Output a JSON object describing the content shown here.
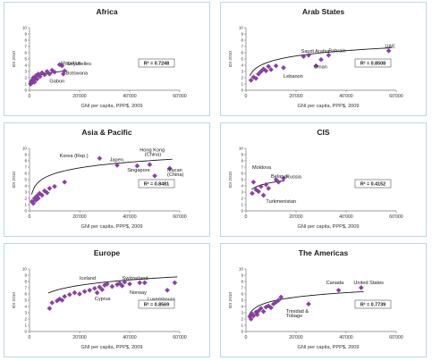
{
  "colors": {
    "marker": "#8e3fa8",
    "trend": "#1a1a1a",
    "frame": "#b9d7e6",
    "axis": "#7a7a7a"
  },
  "chart_data": [
    {
      "type": "scatter",
      "title": "Africa",
      "xlabel": "GNI per capita, PPP$, 2009",
      "ylabel": "IDI 2010",
      "xlim": [
        0,
        60000
      ],
      "ylim": [
        0,
        10
      ],
      "x_ticks": [
        "0",
        "20'000",
        "40'000",
        "60'000"
      ],
      "y_ticks": [
        "0",
        "1",
        "2",
        "3",
        "4",
        "5",
        "6",
        "7",
        "8",
        "9",
        "10"
      ],
      "r2_label": "R² = 0.7248",
      "points": [
        [
          400,
          1.0
        ],
        [
          600,
          1.3
        ],
        [
          800,
          1.1
        ],
        [
          1000,
          1.6
        ],
        [
          1200,
          1.4
        ],
        [
          1500,
          2.0
        ],
        [
          1800,
          1.7
        ],
        [
          2000,
          1.3
        ],
        [
          2500,
          2.3
        ],
        [
          3000,
          1.8
        ],
        [
          3500,
          2.6
        ],
        [
          4200,
          2.2
        ],
        [
          5000,
          2.8
        ],
        [
          6000,
          2.5
        ],
        [
          7000,
          3.0
        ],
        [
          8000,
          2.6
        ],
        [
          9000,
          3.2
        ],
        [
          10000,
          2.9
        ],
        [
          12000,
          4.1
        ],
        [
          13000,
          3.9
        ],
        [
          13500,
          2.6
        ],
        [
          14000,
          3.1
        ]
      ],
      "trend": {
        "a": -2.0,
        "b": 0.53,
        "x0": 300,
        "x1": 14500
      },
      "annotations": [
        {
          "text": "Mauritius",
          "x": 12500,
          "y": 4.1
        },
        {
          "text": "Seychelles",
          "x": 15000,
          "y": 4.0
        },
        {
          "text": "Botswana",
          "x": 14500,
          "y": 2.5
        },
        {
          "text": "Gabon",
          "x": 8000,
          "y": 1.2
        }
      ]
    },
    {
      "type": "scatter",
      "title": "Arab States",
      "xlabel": "GNI per capita, PPP$, 2009",
      "ylabel": "IDI 2010",
      "xlim": [
        0,
        60000
      ],
      "ylim": [
        0,
        10
      ],
      "x_ticks": [
        "0",
        "20'000",
        "40'000",
        "60'000"
      ],
      "y_ticks": [
        "0",
        "1",
        "2",
        "3",
        "4",
        "5",
        "6",
        "7",
        "8",
        "9",
        "10"
      ],
      "r2_label": "R² = 0.8508",
      "points": [
        [
          2000,
          1.6
        ],
        [
          3000,
          2.1
        ],
        [
          4000,
          1.9
        ],
        [
          5000,
          2.6
        ],
        [
          6000,
          3.0
        ],
        [
          7000,
          3.4
        ],
        [
          8000,
          3.1
        ],
        [
          9000,
          3.8
        ],
        [
          10000,
          3.3
        ],
        [
          12000,
          3.9
        ],
        [
          15000,
          3.6
        ],
        [
          23000,
          5.4
        ],
        [
          25000,
          5.6
        ],
        [
          28000,
          3.9
        ],
        [
          30000,
          4.9
        ],
        [
          33000,
          5.6
        ],
        [
          57000,
          6.3
        ]
      ],
      "trend": {
        "a": -6.6,
        "b": 1.22,
        "x0": 1500,
        "x1": 58000
      },
      "annotations": [
        {
          "text": "Saudi Arabia",
          "x": 22000,
          "y": 6.0
        },
        {
          "text": "Bahrain",
          "x": 33000,
          "y": 6.1
        },
        {
          "text": "UAE",
          "x": 55500,
          "y": 6.8
        },
        {
          "text": "Oman",
          "x": 27000,
          "y": 3.5
        },
        {
          "text": "Lebanon",
          "x": 15000,
          "y": 2.0
        }
      ]
    },
    {
      "type": "scatter",
      "title": "Asia & Pacific",
      "xlabel": "GNI per capita, PPP$, 2009",
      "ylabel": "IDI 2010",
      "xlim": [
        0,
        60000
      ],
      "ylim": [
        0,
        10
      ],
      "x_ticks": [
        "0",
        "20'000",
        "40'000",
        "60'000"
      ],
      "y_ticks": [
        "0",
        "1",
        "2",
        "3",
        "4",
        "5",
        "6",
        "7",
        "8",
        "9",
        "10"
      ],
      "r2_label": "R² = 0.8481",
      "points": [
        [
          1000,
          1.5
        ],
        [
          1500,
          1.2
        ],
        [
          2000,
          2.0
        ],
        [
          2500,
          1.7
        ],
        [
          3000,
          2.4
        ],
        [
          3500,
          2.0
        ],
        [
          4000,
          2.8
        ],
        [
          5000,
          2.5
        ],
        [
          6000,
          3.2
        ],
        [
          7000,
          2.9
        ],
        [
          8000,
          3.6
        ],
        [
          10000,
          3.9
        ],
        [
          14000,
          4.6
        ],
        [
          28000,
          8.4
        ],
        [
          35000,
          7.3
        ],
        [
          43000,
          7.2
        ],
        [
          48000,
          7.4
        ],
        [
          50000,
          5.6
        ],
        [
          56000,
          6.8
        ]
      ],
      "trend": {
        "a": -6.2,
        "b": 1.32,
        "x0": 800,
        "x1": 57000
      },
      "annotations": [
        {
          "text": "Korea (Rep.)",
          "x": 12000,
          "y": 8.6
        },
        {
          "text": "Japen",
          "x": 32000,
          "y": 7.9
        },
        {
          "text": "Hong Kong",
          "x": 44000,
          "y": 9.5
        },
        {
          "text": "(China)",
          "x": 46000,
          "y": 8.8
        },
        {
          "text": "Singapore",
          "x": 39000,
          "y": 6.3
        },
        {
          "text": "Macan",
          "x": 55000,
          "y": 6.3
        },
        {
          "text": "(China)",
          "x": 55000,
          "y": 5.6
        },
        {
          "text": "Brunei",
          "x": 47000,
          "y": 4.4
        },
        {
          "text": "Darussalam",
          "x": 45000,
          "y": 3.7
        }
      ]
    },
    {
      "type": "scatter",
      "title": "CIS",
      "xlabel": "GNI per capita, PPP$, 2009",
      "ylabel": "IDI 2010",
      "xlim": [
        0,
        60000
      ],
      "ylim": [
        0,
        10
      ],
      "x_ticks": [
        "0",
        "20'000",
        "40'000",
        "60'000"
      ],
      "y_ticks": [
        "0",
        "1",
        "2",
        "3",
        "4",
        "5",
        "6",
        "7",
        "8",
        "9",
        "10"
      ],
      "r2_label": "R² = 0.4152",
      "points": [
        [
          2500,
          2.8
        ],
        [
          3000,
          4.6
        ],
        [
          4000,
          3.4
        ],
        [
          5000,
          3.1
        ],
        [
          6000,
          3.9
        ],
        [
          7000,
          2.5
        ],
        [
          8000,
          4.2
        ],
        [
          9000,
          3.6
        ],
        [
          12000,
          5.0
        ],
        [
          13000,
          4.6
        ],
        [
          15000,
          5.2
        ]
      ],
      "trend": {
        "a": -2.3,
        "b": 0.74,
        "x0": 2300,
        "x1": 15500
      },
      "annotations": [
        {
          "text": "Moldova",
          "x": 2500,
          "y": 6.7
        },
        {
          "text": "Belarus",
          "x": 10000,
          "y": 5.3
        },
        {
          "text": "Russia",
          "x": 16000,
          "y": 5.2
        },
        {
          "text": "Turkmenistan",
          "x": 8000,
          "y": 1.3
        }
      ]
    },
    {
      "type": "scatter",
      "title": "Europe",
      "xlabel": "GNI per capita, PPP$, 2009",
      "ylabel": "IDI 2010",
      "xlim": [
        0,
        60000
      ],
      "ylim": [
        0,
        10
      ],
      "x_ticks": [
        "0",
        "20'000",
        "40'000",
        "60'000"
      ],
      "y_ticks": [
        "0",
        "1",
        "2",
        "3",
        "4",
        "5",
        "6",
        "7",
        "8",
        "9",
        "10"
      ],
      "r2_label": "R² = 0.8569",
      "points": [
        [
          8000,
          3.7
        ],
        [
          9000,
          4.6
        ],
        [
          11000,
          4.9
        ],
        [
          12000,
          5.2
        ],
        [
          13000,
          5.0
        ],
        [
          14000,
          5.6
        ],
        [
          16000,
          5.9
        ],
        [
          18000,
          6.2
        ],
        [
          20000,
          6.0
        ],
        [
          22000,
          6.4
        ],
        [
          24000,
          6.6
        ],
        [
          26000,
          6.9
        ],
        [
          27000,
          6.2
        ],
        [
          28000,
          7.1
        ],
        [
          29000,
          6.7
        ],
        [
          30000,
          7.4
        ],
        [
          31000,
          7.6
        ],
        [
          33000,
          7.2
        ],
        [
          35000,
          7.5
        ],
        [
          36000,
          7.7
        ],
        [
          37000,
          7.3
        ],
        [
          38000,
          7.9
        ],
        [
          40000,
          7.6
        ],
        [
          44000,
          7.8
        ],
        [
          46000,
          7.8
        ],
        [
          55000,
          6.6
        ],
        [
          58000,
          7.8
        ]
      ],
      "trend": {
        "a": -5.0,
        "b": 1.25,
        "x0": 7500,
        "x1": 59000
      },
      "annotations": [
        {
          "text": "Iceland",
          "x": 20000,
          "y": 8.3
        },
        {
          "text": "Switzerland",
          "x": 37000,
          "y": 8.3
        },
        {
          "text": "Cyprus",
          "x": 26000,
          "y": 5.0
        },
        {
          "text": "Norway",
          "x": 40000,
          "y": 6.0
        },
        {
          "text": "Luxembourg",
          "x": 47000,
          "y": 4.9
        }
      ]
    },
    {
      "type": "scatter",
      "title": "The Americas",
      "xlabel": "GNI per capita, PPP$, 2009",
      "ylabel": "IDI 2010",
      "xlim": [
        0,
        60000
      ],
      "ylim": [
        0,
        10
      ],
      "x_ticks": [
        "0",
        "20'000",
        "40'000",
        "60'000"
      ],
      "y_ticks": [
        "0",
        "1",
        "2",
        "3",
        "4",
        "5",
        "6",
        "7",
        "8",
        "9",
        "10"
      ],
      "r2_label": "R² = 0.7739",
      "points": [
        [
          1500,
          2.4
        ],
        [
          2000,
          2.0
        ],
        [
          2500,
          2.8
        ],
        [
          3000,
          2.5
        ],
        [
          4000,
          3.1
        ],
        [
          4500,
          2.7
        ],
        [
          5000,
          3.3
        ],
        [
          6000,
          3.7
        ],
        [
          7000,
          3.2
        ],
        [
          8000,
          3.9
        ],
        [
          9000,
          4.1
        ],
        [
          10000,
          3.8
        ],
        [
          11000,
          4.4
        ],
        [
          12000,
          4.7
        ],
        [
          13000,
          5.0
        ],
        [
          14000,
          5.5
        ],
        [
          25000,
          4.4
        ],
        [
          37000,
          6.6
        ],
        [
          46000,
          7.0
        ]
      ],
      "trend": {
        "a": -4.6,
        "b": 1.02,
        "x0": 1200,
        "x1": 47000
      },
      "annotations": [
        {
          "text": "Canada",
          "x": 32000,
          "y": 7.6
        },
        {
          "text": "United States",
          "x": 43000,
          "y": 7.6
        },
        {
          "text": "Trinidad &",
          "x": 16000,
          "y": 3.0
        },
        {
          "text": "Tobago",
          "x": 16000,
          "y": 2.3
        }
      ]
    }
  ]
}
